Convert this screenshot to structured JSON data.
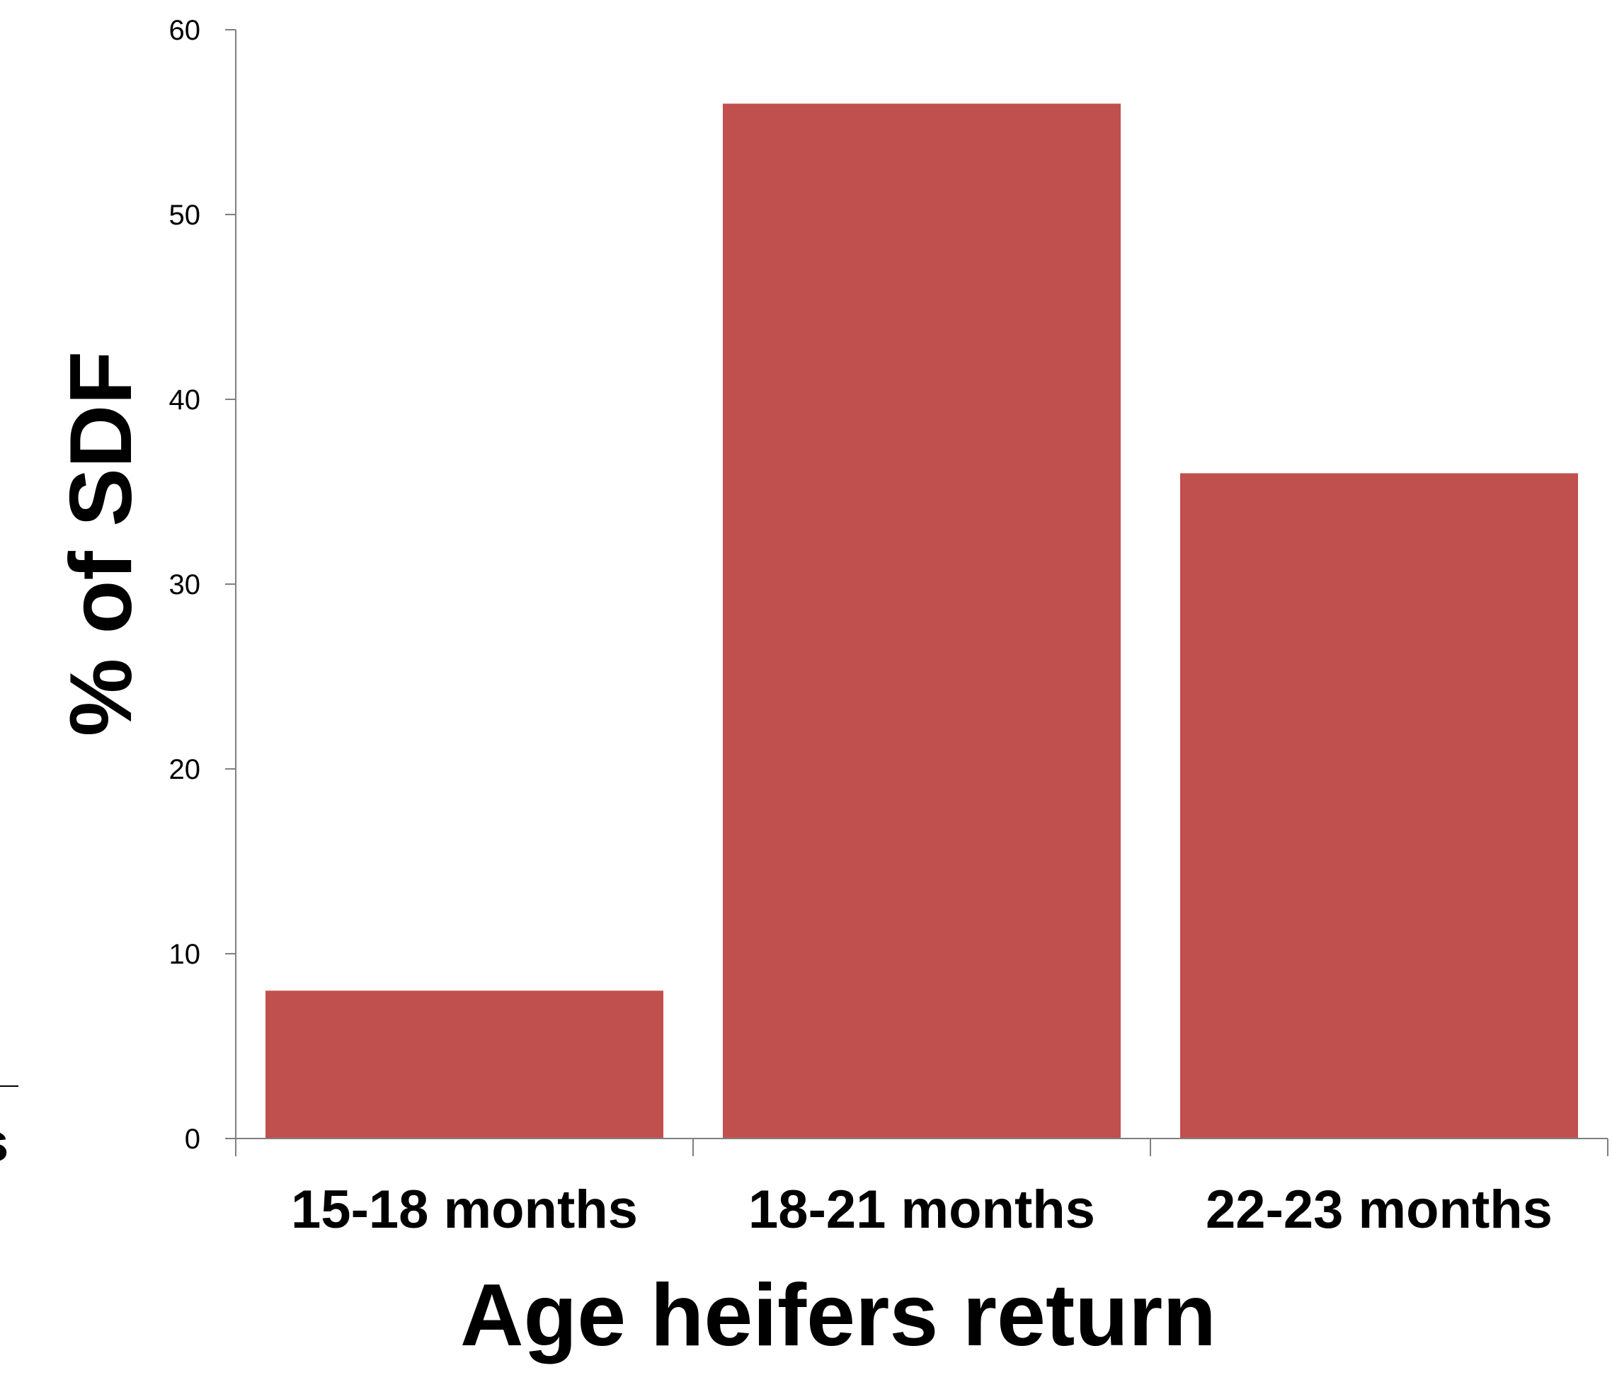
{
  "chart_data": {
    "type": "bar",
    "categories": [
      "15-18 months",
      "18-21 months",
      "22-23 months"
    ],
    "series": [
      {
        "values": [
          8,
          56,
          36
        ]
      }
    ],
    "title": "",
    "xlabel": "Age heifers return",
    "ylabel": "% of SDF",
    "ylim": [
      0,
      60
    ],
    "yticks": [
      0,
      10,
      20,
      30,
      40,
      50,
      60
    ],
    "grid": false,
    "legend": "none",
    "colors": {
      "bar": "#c0504d",
      "axis": "#7f7f7f",
      "text": "#000000"
    }
  },
  "fragment": {
    "glyph": "s"
  }
}
